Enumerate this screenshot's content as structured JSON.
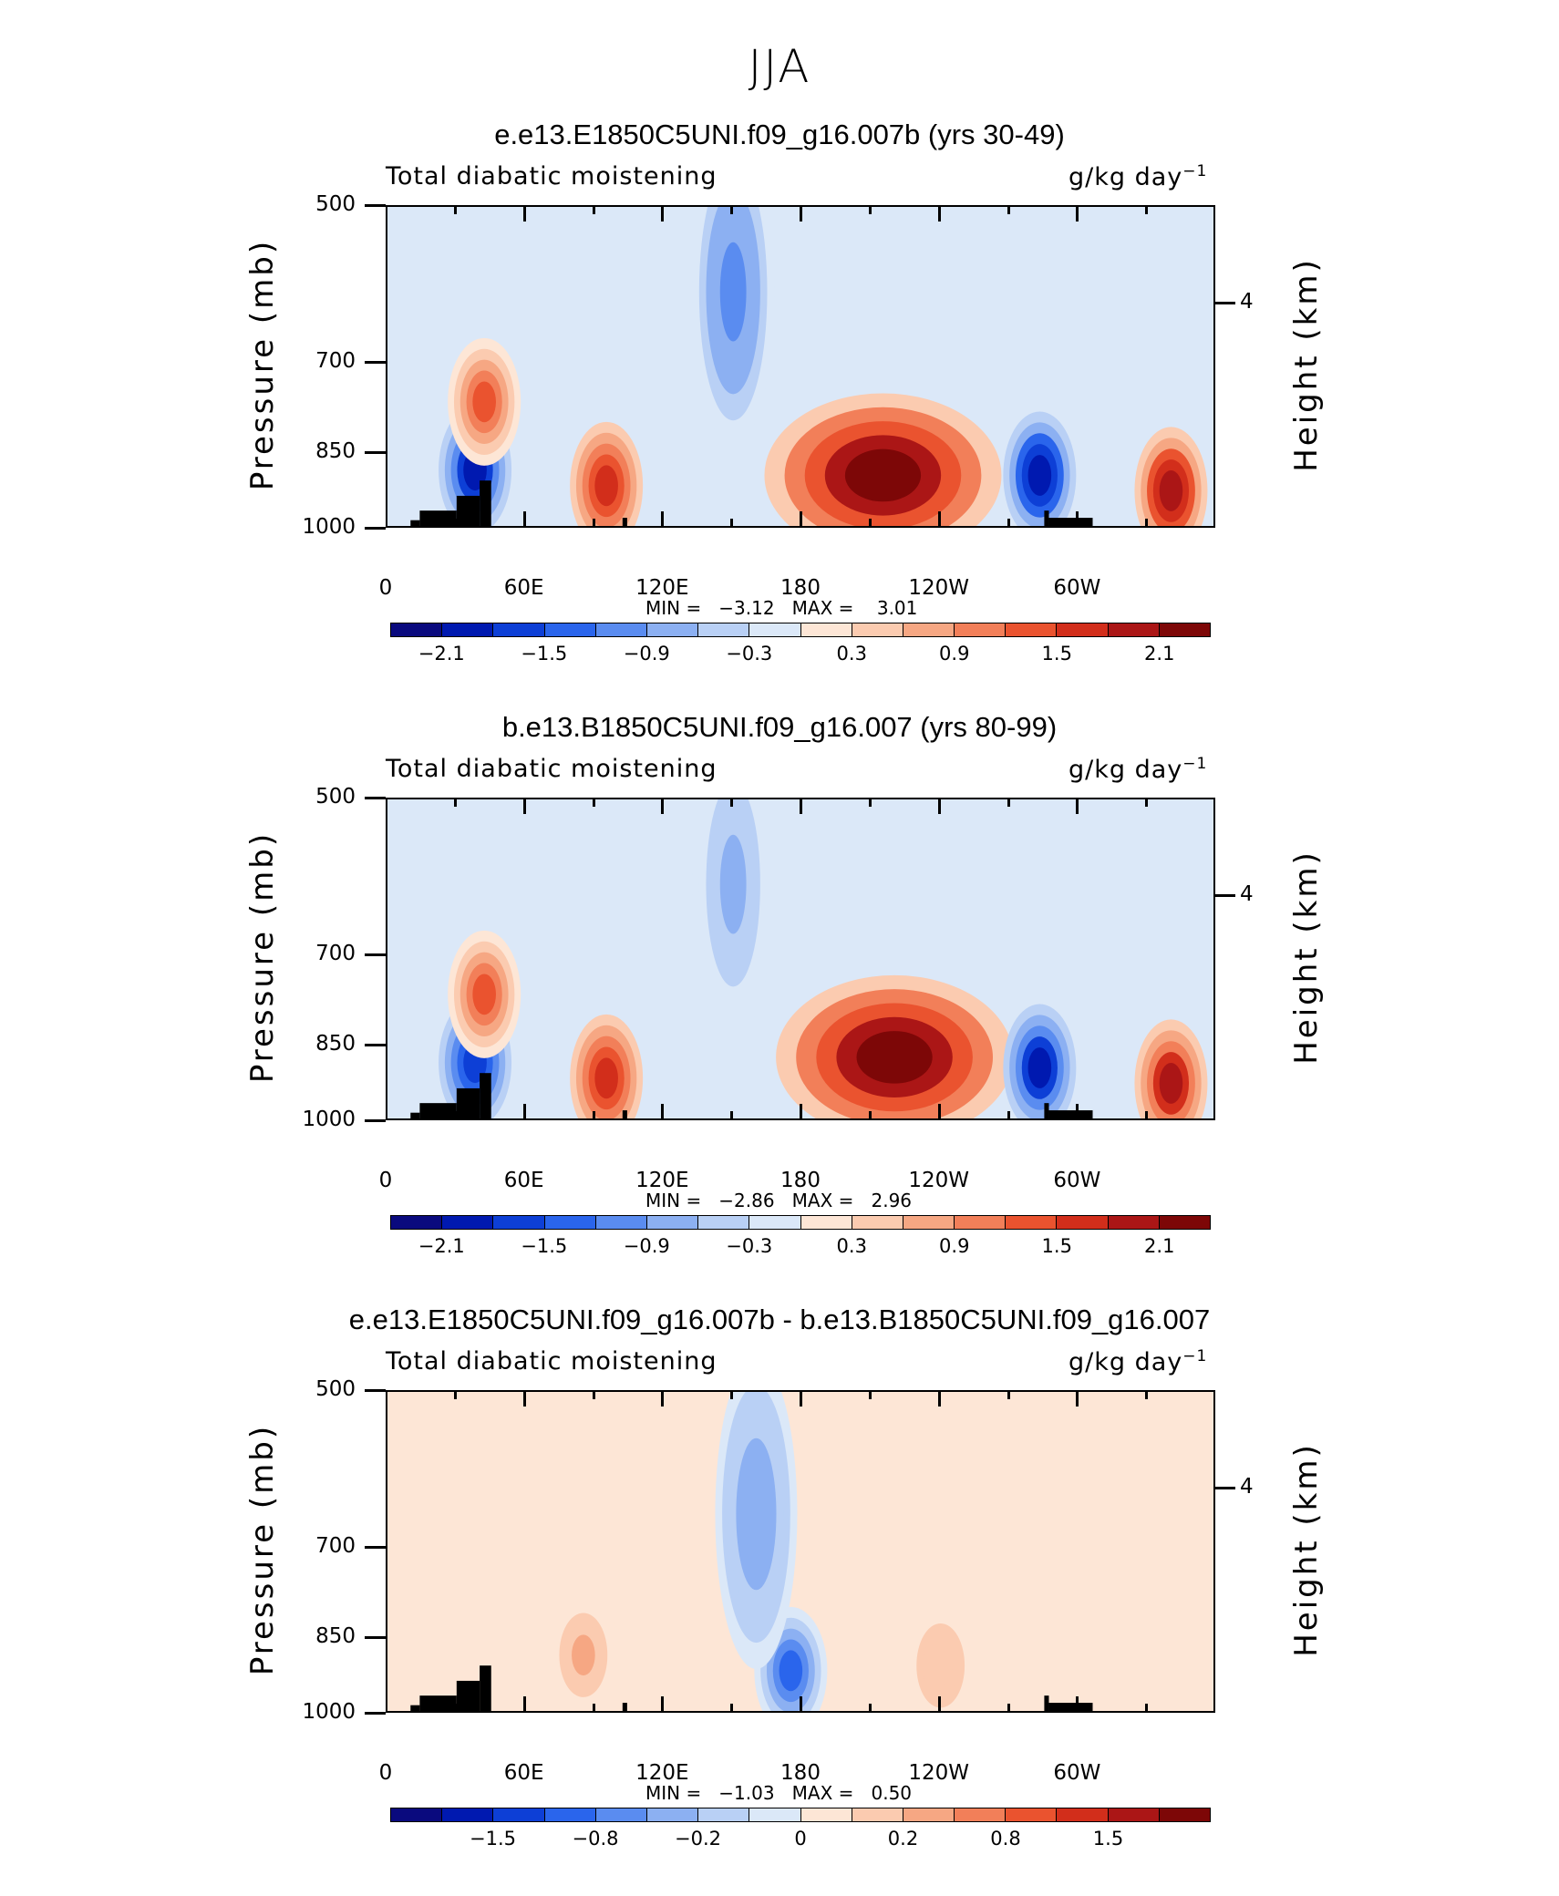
{
  "figure": {
    "title": "JJA"
  },
  "colors": {
    "palette": [
      "#0a0a7e",
      "#0019b0",
      "#0d3fd6",
      "#2a65ec",
      "#5a8cf0",
      "#8cb0f2",
      "#b9d0f5",
      "#dbe8f8",
      "#fde6d6",
      "#fbcbb0",
      "#f6a783",
      "#f27f59",
      "#ea532f",
      "#d22e1b",
      "#ab1616",
      "#7d0707"
    ]
  },
  "chart_data": [
    {
      "type": "heatmap",
      "title": "e.e13.E1850C5UNI.f09_g16.007b (yrs 30-49)",
      "left_label": "Total diabatic moistening",
      "units": "g/kg day",
      "units_exp": "−1",
      "ylabel": "Pressure (mb)",
      "y2label": "Height (km)",
      "yticks": [
        "500",
        "700",
        "850",
        "1000"
      ],
      "y2ticks": [
        "4"
      ],
      "xticks": [
        "0",
        "60E",
        "120E",
        "180",
        "120W",
        "60W"
      ],
      "stats_text": "MIN =   −3.12   MAX =    3.01",
      "min": -3.12,
      "max": 3.01,
      "colorbar_labels": [
        "−2.1",
        "−1.5",
        "−0.9",
        "−0.3",
        "0.3",
        "0.9",
        "1.5",
        "2.1"
      ],
      "features": [
        {
          "lon": 38,
          "p": 880,
          "value": -2.0
        },
        {
          "lon": 42,
          "p": 760,
          "value": 1.5
        },
        {
          "lon": 95,
          "p": 910,
          "value": 1.8
        },
        {
          "lon": 150,
          "p": 600,
          "value": -1.2
        },
        {
          "lon": 215,
          "p": 890,
          "value": 2.6
        },
        {
          "lon": 283,
          "p": 890,
          "value": -2.2
        },
        {
          "lon": 340,
          "p": 920,
          "value": 2.2
        }
      ]
    },
    {
      "type": "heatmap",
      "title": "b.e13.B1850C5UNI.f09_g16.007 (yrs 80-99)",
      "left_label": "Total diabatic moistening",
      "units": "g/kg day",
      "units_exp": "−1",
      "ylabel": "Pressure (mb)",
      "y2label": "Height (km)",
      "yticks": [
        "500",
        "700",
        "850",
        "1000"
      ],
      "y2ticks": [
        "4"
      ],
      "xticks": [
        "0",
        "60E",
        "120E",
        "180",
        "120W",
        "60W"
      ],
      "stats_text": "MIN =   −2.86   MAX =   2.96",
      "min": -2.86,
      "max": 2.96,
      "colorbar_labels": [
        "−2.1",
        "−1.5",
        "−0.9",
        "−0.3",
        "0.3",
        "0.9",
        "1.5",
        "2.1"
      ],
      "features": [
        {
          "lon": 38,
          "p": 880,
          "value": -1.9
        },
        {
          "lon": 42,
          "p": 760,
          "value": 1.4
        },
        {
          "lon": 95,
          "p": 910,
          "value": 1.7
        },
        {
          "lon": 150,
          "p": 600,
          "value": -0.8
        },
        {
          "lon": 220,
          "p": 870,
          "value": 2.5
        },
        {
          "lon": 283,
          "p": 890,
          "value": -2.0
        },
        {
          "lon": 340,
          "p": 920,
          "value": 2.0
        }
      ]
    },
    {
      "type": "heatmap",
      "title": "e.e13.E1850C5UNI.f09_g16.007b - b.e13.B1850C5UNI.f09_g16.007",
      "left_label": "Total diabatic moistening",
      "units": "g/kg day",
      "units_exp": "−1",
      "ylabel": "Pressure (mb)",
      "y2label": "Height (km)",
      "yticks": [
        "500",
        "700",
        "850",
        "1000"
      ],
      "y2ticks": [
        "4"
      ],
      "xticks": [
        "0",
        "60E",
        "120E",
        "180",
        "120W",
        "60W"
      ],
      "stats_text": "MIN =   −1.03   MAX =   0.50",
      "min": -1.03,
      "max": 0.5,
      "colorbar_labels": [
        "−1.5",
        "−0.8",
        "−0.2",
        "0",
        "0.2",
        "0.8",
        "1.5"
      ],
      "features": [
        {
          "lon": 175,
          "p": 910,
          "value": -1.0
        },
        {
          "lon": 160,
          "p": 650,
          "value": -0.6
        },
        {
          "lon": 85,
          "p": 880,
          "value": 0.4
        },
        {
          "lon": 240,
          "p": 900,
          "value": 0.35
        }
      ]
    }
  ]
}
